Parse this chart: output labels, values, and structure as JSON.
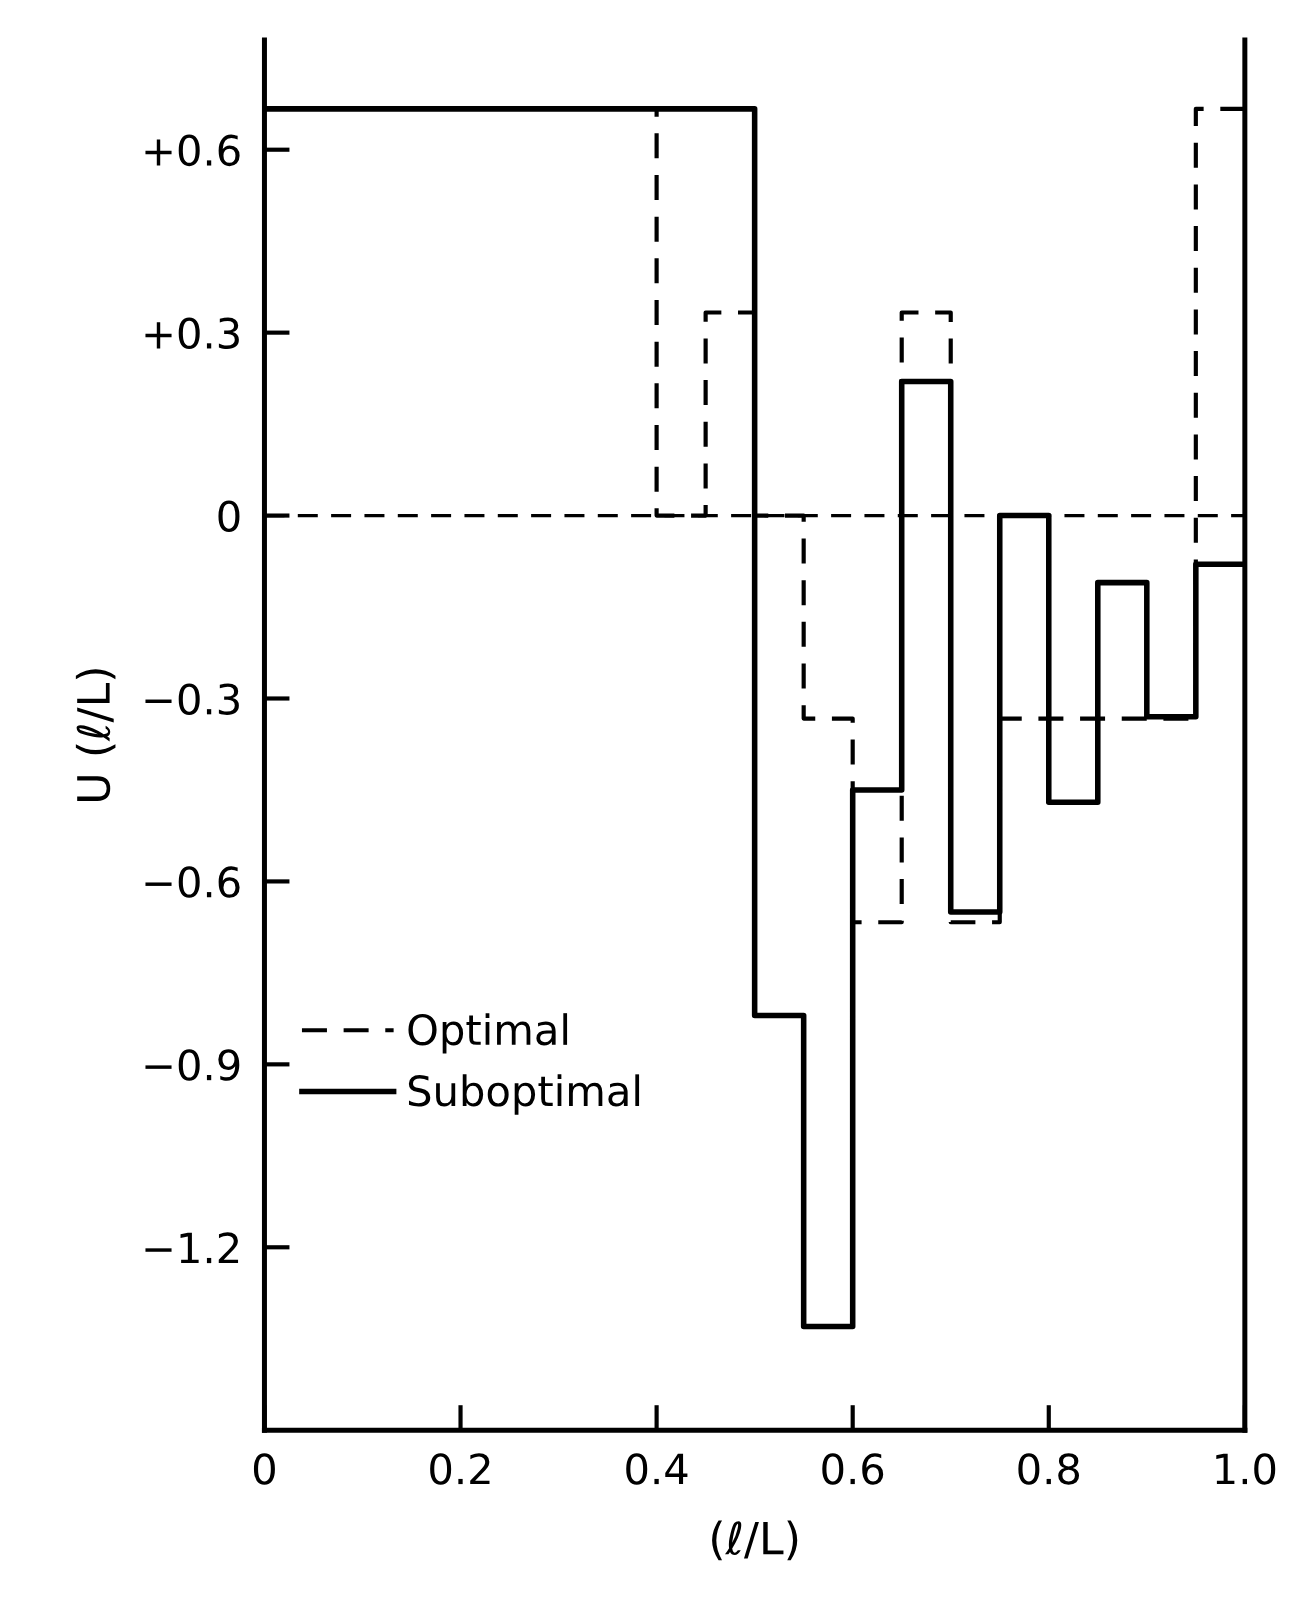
{
  "chart_data": {
    "type": "step",
    "xlabel": "(ℓ/L)",
    "ylabel": "U (ℓ/L)",
    "xlim": [
      0,
      1.0
    ],
    "xticks": [
      0,
      0.2,
      0.4,
      0.6,
      0.8,
      {
        "value": 1,
        "label": "1.0"
      }
    ],
    "ylim": [
      -1.5,
      0.78
    ],
    "yticks": [
      {
        "value": 0.6,
        "label": "+0.6"
      },
      {
        "value": 0.3,
        "label": "+0.3"
      },
      0,
      {
        "value": -0.3,
        "label": "−0.3"
      },
      {
        "value": -0.6,
        "label": "−0.6"
      },
      {
        "value": -0.9,
        "label": "−0.9"
      },
      {
        "value": -1.2,
        "label": "−1.2"
      }
    ],
    "grid": false,
    "legend": "bottom left",
    "ref_lines": [
      {
        "axis": "y",
        "value": 0,
        "color": "#000000",
        "line_style": "dashed"
      }
    ],
    "series": [
      {
        "name": "Optimal",
        "color": "#000000",
        "line_style": "dashed",
        "x": [
          0,
          0.4,
          0.45,
          0.5,
          0.55,
          0.6,
          0.65,
          0.7,
          0.75,
          0.95,
          1.0
        ],
        "values": [
          0.667,
          0,
          0.333,
          0,
          -0.333,
          -0.667,
          0.333,
          -0.667,
          -0.333,
          0.667,
          0.667
        ]
      },
      {
        "name": "Suboptimal",
        "color": "#000000",
        "line_style": "solid",
        "x": [
          0,
          0.5,
          0.55,
          0.6,
          0.65,
          0.7,
          0.75,
          0.8,
          0.85,
          0.9,
          0.95,
          1.0
        ],
        "values": [
          0.667,
          -0.82,
          -1.33,
          -0.45,
          0.22,
          -0.65,
          0,
          -0.47,
          -0.11,
          -0.33,
          -0.08,
          -0.08
        ]
      }
    ]
  }
}
